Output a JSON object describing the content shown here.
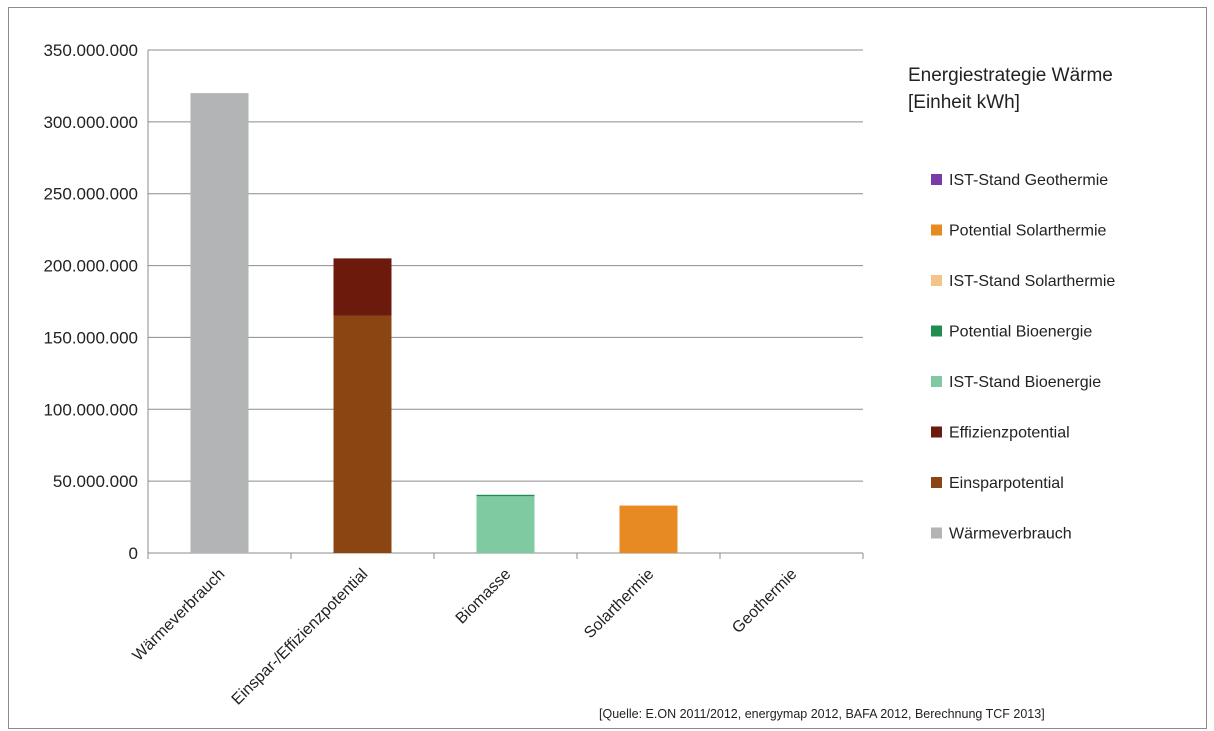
{
  "chart_data": {
    "type": "bar",
    "stacked": true,
    "title": [
      "Energiestrategie Wärme",
      "[Einheit kWh]"
    ],
    "xlabel": "",
    "ylabel": "",
    "categories": [
      "Wärmeverbrauch",
      "Einspar-/Effizienzpotential",
      "Biomasse",
      "Solarthermie",
      "Geothermie"
    ],
    "ylim": [
      0,
      350000000
    ],
    "yticks": [
      0,
      50000000,
      100000000,
      150000000,
      200000000,
      250000000,
      300000000,
      350000000
    ],
    "ytick_labels": [
      "0",
      "50.000.000",
      "100.000.000",
      "150.000.000",
      "200.000.000",
      "250.000.000",
      "300.000.000",
      "350.000.000"
    ],
    "grid": true,
    "legend_position": "right",
    "series": [
      {
        "name": "Wärmeverbrauch",
        "color": "#b2b4b6",
        "values": [
          320000000,
          0,
          0,
          0,
          0
        ]
      },
      {
        "name": "Einsparpotential",
        "color": "#8b4513",
        "values": [
          0,
          165000000,
          0,
          0,
          0
        ]
      },
      {
        "name": "Effizienzpotential",
        "color": "#6b1a0c",
        "values": [
          0,
          40000000,
          0,
          0,
          0
        ]
      },
      {
        "name": "IST-Stand Bioenergie",
        "color": "#7fcaa0",
        "values": [
          0,
          0,
          39500000,
          0,
          0
        ]
      },
      {
        "name": "Potential Bioenergie",
        "color": "#1e8e4e",
        "values": [
          0,
          0,
          1000000,
          0,
          0
        ]
      },
      {
        "name": "IST-Stand Solarthermie",
        "color": "#f2c48a",
        "values": [
          0,
          0,
          0,
          0,
          0
        ]
      },
      {
        "name": "Potential Solarthermie",
        "color": "#e88a22",
        "values": [
          0,
          0,
          0,
          33000000,
          0
        ]
      },
      {
        "name": "IST-Stand Geothermie",
        "color": "#7a3aa8",
        "values": [
          0,
          0,
          0,
          0,
          0
        ]
      }
    ],
    "legend_order": [
      "IST-Stand Geothermie",
      "Potential Solarthermie",
      "IST-Stand Solarthermie",
      "Potential Bioenergie",
      "IST-Stand Bioenergie",
      "Effizienzpotential",
      "Einsparpotential",
      "Wärmeverbrauch"
    ],
    "source_note": "[Quelle: E.ON 2011/2012, energymap 2012,  BAFA 2012, Berechnung TCF 2013]"
  }
}
